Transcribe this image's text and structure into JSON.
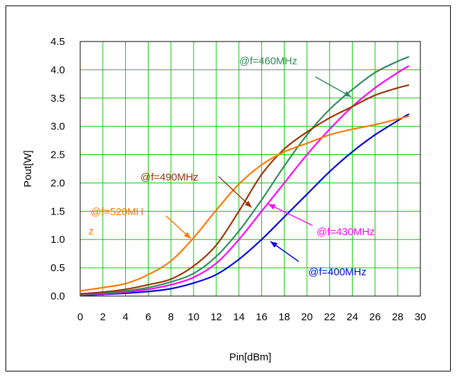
{
  "chart_data": {
    "type": "line",
    "title": "",
    "xlabel": "Pin[dBm]",
    "ylabel": "Pout[W]",
    "xlim": [
      0,
      30
    ],
    "ylim": [
      0,
      4.5
    ],
    "xticks": [
      0,
      2,
      4,
      6,
      8,
      10,
      12,
      14,
      16,
      18,
      20,
      22,
      24,
      26,
      28,
      30
    ],
    "yticks": [
      "0.0",
      "0.5",
      "1.0",
      "1.5",
      "2.0",
      "2.5",
      "3.0",
      "3.5",
      "4.0",
      "4.5"
    ],
    "grid": true,
    "grid_color": "#00cc00",
    "x": [
      0,
      2,
      4,
      6,
      8,
      10,
      12,
      14,
      16,
      18,
      20,
      22,
      24,
      26,
      28,
      29
    ],
    "series": [
      {
        "color": "#0000dd",
        "values": [
          0.01,
          0.03,
          0.05,
          0.08,
          0.13,
          0.23,
          0.38,
          0.65,
          1.0,
          1.4,
          1.8,
          2.2,
          2.55,
          2.85,
          3.1,
          3.22
        ]
      },
      {
        "color": "#ff00ff",
        "values": [
          0.02,
          0.04,
          0.07,
          0.12,
          0.2,
          0.33,
          0.58,
          1.0,
          1.5,
          2.0,
          2.5,
          2.95,
          3.35,
          3.68,
          3.95,
          4.07
        ]
      },
      {
        "color": "#2e8b57",
        "values": [
          0.03,
          0.05,
          0.09,
          0.15,
          0.25,
          0.4,
          0.7,
          1.15,
          1.7,
          2.3,
          2.85,
          3.3,
          3.65,
          3.95,
          4.15,
          4.23
        ]
      },
      {
        "color": "#993300",
        "values": [
          0.04,
          0.07,
          0.12,
          0.2,
          0.3,
          0.53,
          0.9,
          1.5,
          2.15,
          2.6,
          2.9,
          3.15,
          3.35,
          3.55,
          3.68,
          3.73
        ]
      },
      {
        "color": "#ff7700",
        "values": [
          0.09,
          0.15,
          0.22,
          0.38,
          0.62,
          1.03,
          1.52,
          1.98,
          2.32,
          2.55,
          2.7,
          2.85,
          2.95,
          3.03,
          3.13,
          3.18
        ]
      }
    ],
    "annotations": [
      {
        "text": "@f=460MHz",
        "color": "#2e8b57"
      },
      {
        "text": "@f=490MHz",
        "color": "#993300"
      },
      {
        "text": "@f=520MH",
        "color": "#ff7700"
      },
      {
        "text": "z",
        "color": "#ff7700"
      },
      {
        "text": "@f=430MHz",
        "color": "#ff00ff"
      },
      {
        "text": "@f=400MHz",
        "color": "#0000dd"
      }
    ]
  }
}
